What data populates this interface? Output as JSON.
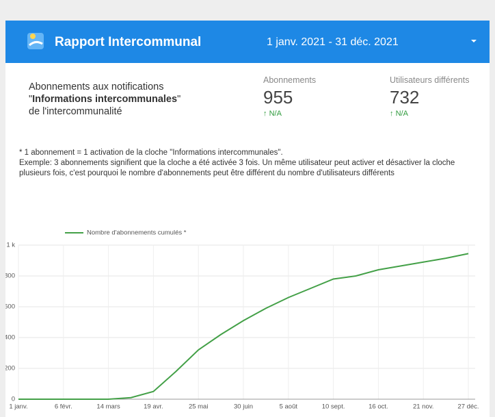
{
  "header": {
    "title": "Rapport Intercommunal",
    "date_range": "1 janv. 2021 - 31 déc. 2021"
  },
  "description": {
    "before": "Abonnements aux notifications \"",
    "bold": "Informations intercommunales",
    "after": "\" de l'intercommunalité"
  },
  "kpis": [
    {
      "label": "Abonnements",
      "value": "955",
      "delta": "N/A"
    },
    {
      "label": "Utilisateurs différents",
      "value": "732",
      "delta": "N/A"
    }
  ],
  "footnote": [
    "* 1 abonnement = 1 activation de la cloche \"Informations intercommunales\".",
    "Exemple: 3 abonnements signifient que la cloche a été activée 3 fois. Un même utilisateur peut activer et désactiver la cloche plusieurs fois, c'est pourquoi le nombre d'abonnements peut être différent du nombre d'utilisateurs différents"
  ],
  "chart_data": {
    "type": "line",
    "categories": [
      "1 janv.",
      null,
      "6 févr.",
      null,
      "14 mars",
      null,
      "19 avr.",
      null,
      "25 mai",
      null,
      "30 juin",
      null,
      "5 août",
      null,
      "10 sept.",
      null,
      "16 oct.",
      null,
      "21 nov.",
      null,
      "27 déc."
    ],
    "series": [
      {
        "name": "Nombre d'abonnements cumulés *",
        "color": "#43a047",
        "values": [
          0,
          0,
          0,
          0,
          0,
          10,
          50,
          180,
          320,
          420,
          510,
          590,
          660,
          720,
          780,
          800,
          840,
          865,
          890,
          915,
          945
        ]
      }
    ],
    "ylim": [
      0,
      1000
    ],
    "yticks": [
      0,
      200,
      400,
      600,
      800,
      {
        "value": 1000,
        "label": "1 k"
      }
    ],
    "grid": true
  }
}
